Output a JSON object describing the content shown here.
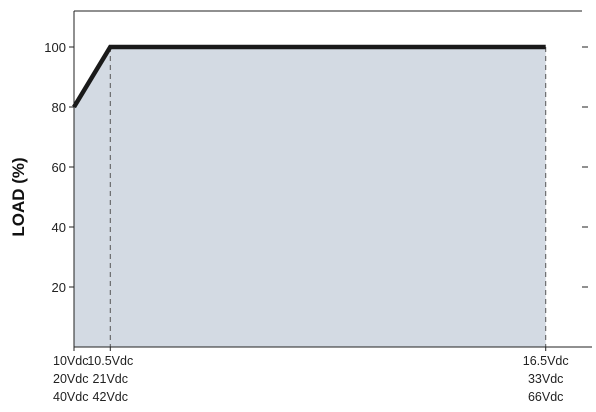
{
  "chart_data": {
    "type": "area",
    "ylabel": "LOAD (%)",
    "xlabel": "",
    "ylim": [
      0,
      112
    ],
    "yticks": [
      20,
      40,
      60,
      80,
      100
    ],
    "x_tick_labels": [
      {
        "lines": [
          "10Vdc",
          "20Vdc",
          "40Vdc"
        ]
      },
      {
        "lines": [
          "10.5Vdc",
          "21Vdc",
          "42Vdc"
        ]
      },
      {
        "lines": [
          "16.5Vdc",
          "33Vdc",
          "66Vdc"
        ]
      }
    ],
    "x_ticks_vdc": [
      10,
      10.5,
      16.5
    ],
    "xlim": [
      10,
      17.0
    ],
    "series": [
      {
        "x": [
          10,
          10.5,
          16.5
        ],
        "y": [
          80,
          100,
          100
        ]
      }
    ],
    "fill_color": "#d3dae3",
    "line_color": "#1a1a1a",
    "grid": false
  }
}
